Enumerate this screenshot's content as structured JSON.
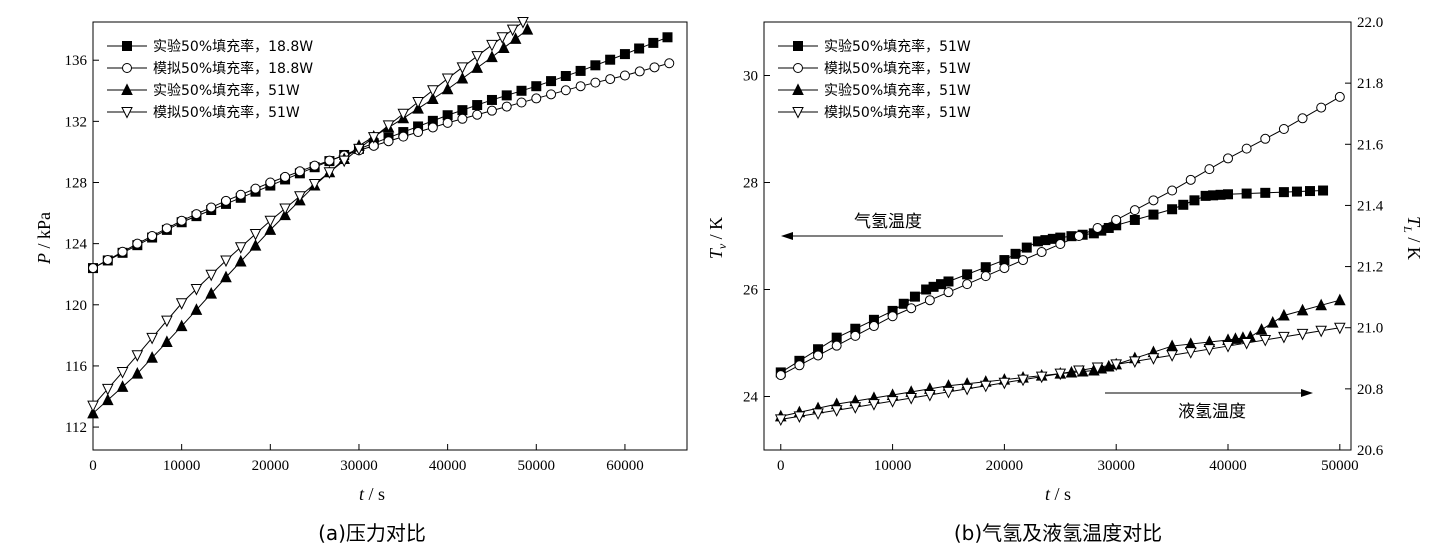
{
  "chart_data": [
    {
      "type": "line",
      "id": "a",
      "caption": "(a)压力对比",
      "xlabel_italic": "t",
      "xlabel_unit": " / s",
      "ylabel_italic": "P",
      "ylabel_unit": " / kPa",
      "xlim": [
        0,
        67000
      ],
      "ylim": [
        110.5,
        138.5
      ],
      "xticks": [
        0,
        10000,
        20000,
        30000,
        40000,
        50000,
        60000
      ],
      "xtick_labels": [
        "0",
        "10000",
        "20000",
        "30000",
        "40000",
        "50000",
        "60000"
      ],
      "yticks": [
        112,
        116,
        120,
        124,
        128,
        132,
        136
      ],
      "ytick_labels": [
        "112",
        "116",
        "120",
        "124",
        "128",
        "132",
        "136"
      ],
      "legend_position": "top-left",
      "series": [
        {
          "name": "实验50%填充率，18.8W",
          "marker": "square-filled",
          "x": [
            0,
            5000,
            10000,
            15000,
            20000,
            25000,
            30000,
            35000,
            40000,
            45000,
            50000,
            55000,
            60000,
            64800
          ],
          "y": [
            122.4,
            123.9,
            125.4,
            126.6,
            127.8,
            129.0,
            130.2,
            131.3,
            132.4,
            133.4,
            134.3,
            135.3,
            136.4,
            137.5
          ]
        },
        {
          "name": "模拟50%填充率，18.8W",
          "marker": "circle-open",
          "x": [
            0,
            5000,
            10000,
            15000,
            20000,
            25000,
            30000,
            35000,
            40000,
            45000,
            50000,
            55000,
            60000,
            65000
          ],
          "y": [
            122.4,
            124.0,
            125.5,
            126.8,
            128.0,
            129.1,
            130.1,
            131.0,
            131.9,
            132.7,
            133.5,
            134.3,
            135.0,
            135.8
          ]
        },
        {
          "name": "实验50%填充率，51W",
          "marker": "triangle-filled",
          "x": [
            0,
            5000,
            10000,
            15000,
            20000,
            25000,
            30000,
            35000,
            40000,
            45000,
            49000
          ],
          "y": [
            112.9,
            115.5,
            118.6,
            121.8,
            124.9,
            127.8,
            130.4,
            132.2,
            134.1,
            136.2,
            138.0
          ]
        },
        {
          "name": "模拟50%填充率，51W",
          "marker": "triangle-down-open",
          "x": [
            0,
            5000,
            10000,
            15000,
            20000,
            25000,
            30000,
            35000,
            40000,
            45000,
            48500
          ],
          "y": [
            113.4,
            116.7,
            120.1,
            122.9,
            125.5,
            127.9,
            130.2,
            132.5,
            134.8,
            137.0,
            138.5
          ]
        }
      ]
    },
    {
      "type": "line",
      "id": "b",
      "caption": "(b)气氢及液氢温度对比",
      "xlabel_italic": "t",
      "xlabel_unit": " / s",
      "ylabel_italic": "T",
      "ylabel_sub": "v",
      "ylabel_unit": " / K",
      "y2label_italic": "T",
      "y2label_sub": "L",
      "y2label_unit": " / K",
      "xlim": [
        -1500,
        51000
      ],
      "ylim": [
        23.0,
        31.0
      ],
      "y2lim": [
        20.6,
        22.0
      ],
      "xticks": [
        0,
        10000,
        20000,
        30000,
        40000,
        50000
      ],
      "xtick_labels": [
        "0",
        "10000",
        "20000",
        "30000",
        "40000",
        "50000"
      ],
      "yticks": [
        24,
        26,
        28,
        30
      ],
      "ytick_labels": [
        "24",
        "26",
        "28",
        "30"
      ],
      "y2ticks": [
        20.6,
        20.8,
        21.0,
        21.2,
        21.4,
        21.6,
        21.8,
        22.0
      ],
      "y2tick_labels": [
        "20.6",
        "20.8",
        "21.0",
        "21.2",
        "21.4",
        "21.6",
        "21.8",
        "22.0"
      ],
      "legend_position": "top-left",
      "annotations": [
        {
          "text": "气氢温度",
          "arrow": "left",
          "axis": "left"
        },
        {
          "text": "液氢温度",
          "arrow": "right",
          "axis": "right"
        }
      ],
      "series": [
        {
          "name": "实验50%填充率，51W",
          "marker": "square-filled",
          "axis": "left",
          "x": [
            0,
            5000,
            10000,
            13000,
            15000,
            20000,
            23000,
            25000,
            28000,
            30000,
            35000,
            38000,
            40000,
            45000,
            48500
          ],
          "y": [
            24.45,
            25.1,
            25.6,
            26.0,
            26.15,
            26.55,
            26.9,
            26.97,
            27.05,
            27.2,
            27.5,
            27.75,
            27.78,
            27.82,
            27.85
          ]
        },
        {
          "name": "模拟50%填充率，51W",
          "marker": "circle-open",
          "axis": "left",
          "x": [
            0,
            5000,
            10000,
            15000,
            20000,
            25000,
            30000,
            35000,
            40000,
            45000,
            50000
          ],
          "y": [
            24.4,
            24.95,
            25.5,
            25.95,
            26.4,
            26.85,
            27.3,
            27.85,
            28.45,
            29.0,
            29.6
          ]
        },
        {
          "name": "实验50%填充率，51W",
          "marker": "triangle-filled",
          "axis": "right",
          "x": [
            0,
            5000,
            10000,
            15000,
            20000,
            25000,
            28000,
            30000,
            35000,
            40000,
            42000,
            45000,
            50000
          ],
          "y": [
            20.71,
            20.75,
            20.78,
            20.81,
            20.83,
            20.85,
            20.86,
            20.88,
            20.94,
            20.96,
            20.97,
            21.04,
            21.09
          ]
        },
        {
          "name": "模拟50%填充率，51W",
          "marker": "triangle-down-open",
          "axis": "right",
          "x": [
            0,
            5000,
            10000,
            15000,
            20000,
            25000,
            30000,
            35000,
            40000,
            45000,
            50000
          ],
          "y": [
            20.7,
            20.73,
            20.76,
            20.79,
            20.82,
            20.85,
            20.88,
            20.91,
            20.94,
            20.97,
            21.0
          ]
        }
      ]
    }
  ]
}
